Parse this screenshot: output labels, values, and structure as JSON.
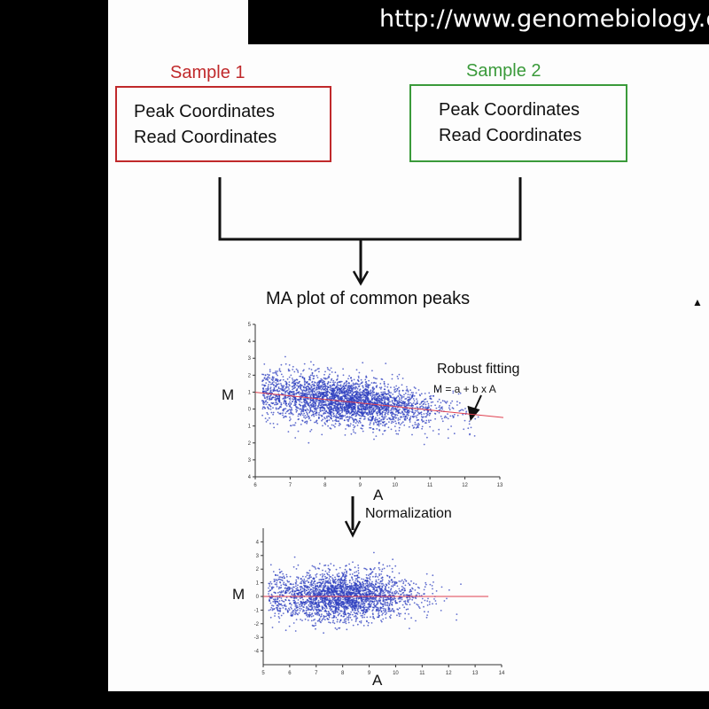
{
  "url_bar": {
    "text": "http://www.genomebiology.c"
  },
  "sample1": {
    "title": "Sample 1",
    "line1": "Peak Coordinates",
    "line2": "Read Coordinates",
    "color": "#c0292b"
  },
  "sample2": {
    "title": "Sample  2",
    "line1": "Peak Coordinates",
    "line2": "Read Coordinates",
    "color": "#3a9a3a"
  },
  "flow_label": "MA plot of common peaks",
  "top_plot": {
    "y_label": "M",
    "x_label": "A",
    "annotation_title": "Robust fitting",
    "annotation_formula": "M = a + b x A"
  },
  "normalization_label": "Normalization",
  "bottom_plot": {
    "y_label": "M",
    "x_label": "A"
  },
  "colors": {
    "points": "#2d3fbf",
    "fit_line": "#e04050"
  },
  "chart_data": [
    {
      "type": "scatter",
      "ylabel": "M",
      "xlabel": "A",
      "x_ticks": [
        "6",
        "7",
        "8",
        "9",
        "10",
        "11",
        "12",
        "13"
      ],
      "y_ticks": [
        "5",
        "4",
        "3",
        "2",
        "1",
        "0",
        "-1",
        "-2",
        "-3",
        "-4"
      ],
      "xlim": [
        6,
        13
      ],
      "ylim": [
        -4,
        5
      ],
      "fit_line": {
        "a": 2.25,
        "b": -0.21
      },
      "annotation": [
        "Robust fitting",
        "M = a + b x A"
      ]
    },
    {
      "type": "scatter",
      "ylabel": "M",
      "xlabel": "A",
      "x_ticks": [
        "5",
        "6",
        "7",
        "8",
        "9",
        "10",
        "11",
        "12",
        "13",
        "14"
      ],
      "y_ticks": [
        "4",
        "3",
        "2",
        "1",
        "0",
        "-1",
        "-2",
        "-3",
        "-4"
      ],
      "xlim": [
        5,
        14
      ],
      "ylim": [
        -5,
        5
      ],
      "fit_line": {
        "a": 0,
        "b": 0
      }
    }
  ]
}
